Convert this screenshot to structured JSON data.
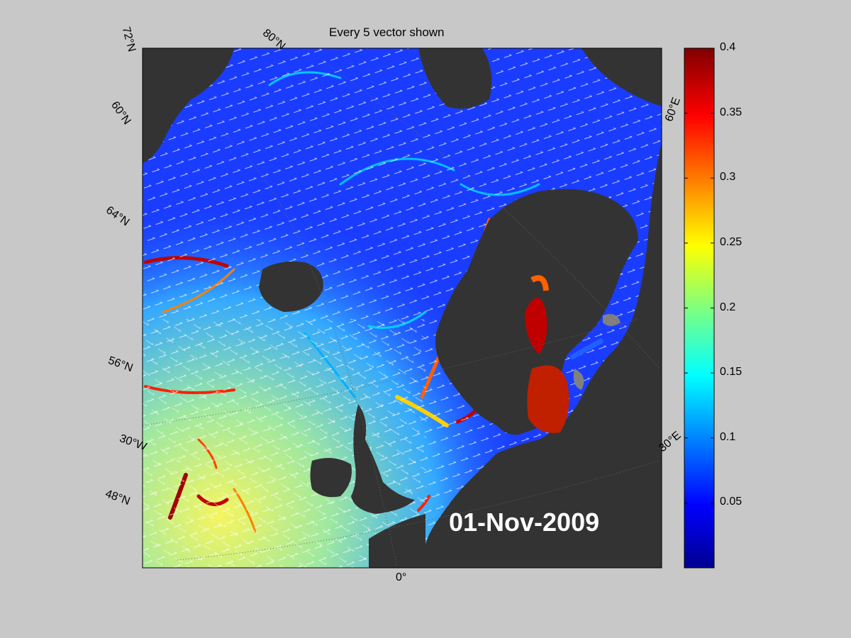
{
  "figure": {
    "title": "Every 5 vector shown",
    "date_stamp": "01-Nov-2009"
  },
  "map": {
    "land_color": "#333333",
    "lakes_color": "#808080",
    "vector_color": "#ffffff",
    "lat_labels": [
      "72°N",
      "60°N",
      "64°N",
      "56°N",
      "48°N"
    ],
    "lon_labels": [
      "80°N",
      "30°W",
      "0°",
      "30°E",
      "60°E"
    ],
    "label_latitude_top": "72",
    "label_n": "N"
  },
  "colorbar": {
    "colormap": "jet",
    "min": 0,
    "max": 0.4,
    "ticks": [
      "0.4",
      "0.35",
      "0.3",
      "0.25",
      "0.2",
      "0.15",
      "0.1",
      "0.05"
    ],
    "tick_values": [
      0.4,
      0.35,
      0.3,
      0.25,
      0.2,
      0.15,
      0.1,
      0.05
    ]
  }
}
